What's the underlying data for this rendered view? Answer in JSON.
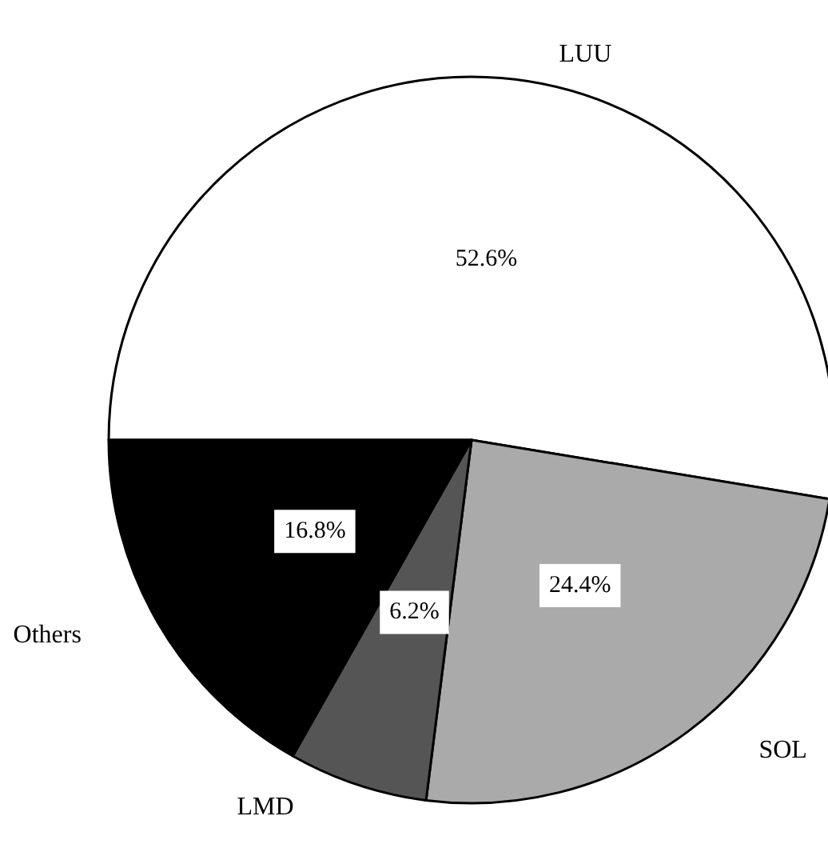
{
  "chart_data": {
    "type": "pie",
    "categories": [
      "LUU",
      "SOL",
      "LMD",
      "Others"
    ],
    "values": [
      52.6,
      24.4,
      6.2,
      16.8
    ],
    "colors": [
      "#ffffff",
      "#aaaaaa",
      "#555555",
      "#000000"
    ],
    "value_labels": [
      "52.6%",
      "24.4%",
      "6.2%",
      "16.8%"
    ]
  }
}
